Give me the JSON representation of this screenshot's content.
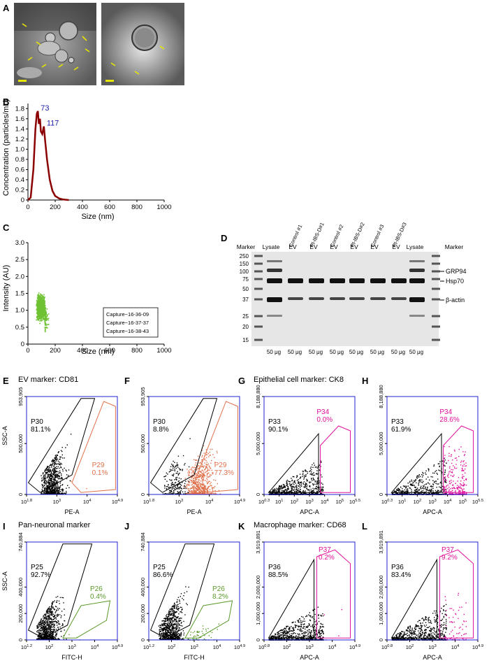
{
  "panel_labels": [
    "A",
    "B",
    "C",
    "D",
    "E",
    "F",
    "G",
    "H",
    "I",
    "J",
    "K",
    "L"
  ],
  "colors": {
    "nta_line": "#8b0000",
    "nta_peak": "#1a1aa8",
    "scatter_green": "#6fc233",
    "flow_black": "#000000",
    "flow_orange": "#e0704a",
    "flow_magenta": "#e0109c",
    "flow_green": "#5a9a2a",
    "axis_blue": "#2222cc"
  },
  "panel_b": {
    "chart_data": {
      "type": "line",
      "ylabel": "Concentration (particles/mL)",
      "xlabel": "Size (nm)",
      "xlim": [
        0,
        1000
      ],
      "ylim": [
        0,
        1.9
      ],
      "xticks": [
        "0",
        "200",
        "400",
        "600",
        "800",
        "1000"
      ],
      "yticks": [
        "0",
        "0.2",
        "0.4",
        "0.6",
        "0.8",
        "1.0",
        "1.2",
        "1.4",
        "1.6",
        "1.8"
      ],
      "peaks": [
        {
          "x": 73,
          "y": 1.75,
          "label": "73"
        },
        {
          "x": 117,
          "y": 1.45,
          "label": "117"
        }
      ],
      "x": [
        0,
        20,
        40,
        55,
        65,
        73,
        80,
        88,
        95,
        105,
        117,
        125,
        140,
        160,
        180,
        200,
        230,
        260,
        300
      ],
      "y": [
        0,
        0.05,
        0.6,
        1.4,
        1.7,
        1.75,
        1.5,
        1.6,
        1.35,
        1.3,
        1.45,
        1.2,
        0.8,
        0.4,
        0.18,
        0.08,
        0.03,
        0.01,
        0
      ]
    }
  },
  "panel_c": {
    "chart_data": {
      "type": "scatter",
      "ylabel": "Intensity (AU)",
      "xlabel": "Size (nm)",
      "xlim": [
        0,
        1000
      ],
      "ylim": [
        0,
        3.0
      ],
      "xticks": [
        "0",
        "200",
        "400",
        "600",
        "800",
        "1000"
      ],
      "yticks": [
        "0",
        "0.5",
        "1.0",
        "1.5",
        "2.0",
        "2.5",
        "3.0"
      ],
      "legend": [
        "Capture~16-36-09",
        "Capture~16-37-37",
        "Capture~16-38-43"
      ],
      "legend_position": "bottom-right"
    }
  },
  "panel_d": {
    "lane_labels": [
      "Marker",
      "Lysate",
      "EV",
      "EV",
      "EV",
      "EV",
      "EV",
      "EV",
      "Lysate",
      "Marker"
    ],
    "group_labels": [
      "Control #1",
      "PI-IBS-D#1",
      "Control #2",
      "PI-IBS-D#2",
      "Control #3",
      "PI-IBS-D#3"
    ],
    "mw_markers": [
      "250",
      "150",
      "100",
      "75",
      "50",
      "37",
      "25",
      "20",
      "15"
    ],
    "bands": [
      "GRP94",
      "Hsp70",
      "β-actin"
    ],
    "loading": [
      "50 μg",
      "50 μg",
      "50 μg",
      "50 μg",
      "50 μg",
      "50 μg",
      "50 μg",
      "50 μg"
    ]
  },
  "titles": {
    "E": "EV marker: CD81",
    "G": "Epithelial cell marker: CK8",
    "I": "Pan-neuronal marker",
    "K": "Macrophage marker: CD68"
  },
  "flow": [
    {
      "id": "E",
      "ylabel": "SSC-A",
      "xlabel": "PE-A",
      "yticks": [
        "0",
        "500,000",
        "953,905"
      ],
      "xticks": [
        "10^1.8",
        "10^3",
        "10^4",
        "10^4.9"
      ],
      "gate1": {
        "name": "P30",
        "pct": "81.1%"
      },
      "gate2": {
        "name": "P29",
        "pct": "0.1%"
      },
      "color2": "orange"
    },
    {
      "id": "F",
      "ylabel": "",
      "xlabel": "PE-A",
      "yticks": [
        "0",
        "500,000",
        "953,905"
      ],
      "xticks": [
        "10^1.8",
        "10^3",
        "10^4",
        "10^4.9"
      ],
      "gate1": {
        "name": "P30",
        "pct": "8.8%"
      },
      "gate2": {
        "name": "P29",
        "pct": "77.3%"
      },
      "color2": "orange"
    },
    {
      "id": "G",
      "ylabel": "",
      "xlabel": "APC-A",
      "yticks": [
        "0",
        "5,000,000",
        "8,188,880"
      ],
      "xticks": [
        "10^0.3",
        "10^1",
        "10^2",
        "10^3",
        "10^4",
        "10^5",
        "10^5.5"
      ],
      "gate1": {
        "name": "P33",
        "pct": "90.1%"
      },
      "gate2": {
        "name": "P34",
        "pct": "0.0%"
      },
      "color2": "magenta"
    },
    {
      "id": "H",
      "ylabel": "",
      "xlabel": "APC-A",
      "yticks": [
        "0",
        "5,000,000",
        "8,188,880"
      ],
      "xticks": [
        "10^0.3",
        "10^1",
        "10^2",
        "10^3",
        "10^4",
        "10^5",
        "10^5.5"
      ],
      "gate1": {
        "name": "P33",
        "pct": "61.9%"
      },
      "gate2": {
        "name": "P34",
        "pct": "28.6%"
      },
      "color2": "magenta"
    },
    {
      "id": "I",
      "ylabel": "SSC-A",
      "xlabel": "FITC-H",
      "yticks": [
        "0",
        "200,000",
        "400,000",
        "740,884"
      ],
      "xticks": [
        "10^1.2",
        "10^2",
        "10^3",
        "10^4",
        "10^4.9"
      ],
      "gate1": {
        "name": "P25",
        "pct": "92.7%"
      },
      "gate2": {
        "name": "P26",
        "pct": "0.4%"
      },
      "color2": "green"
    },
    {
      "id": "J",
      "ylabel": "",
      "xlabel": "FITC-H",
      "yticks": [
        "0",
        "200,000",
        "400,000",
        "740,884"
      ],
      "xticks": [
        "10^1.2",
        "10^2",
        "10^3",
        "10^4",
        "10^4.9"
      ],
      "gate1": {
        "name": "P25",
        "pct": "86.6%"
      },
      "gate2": {
        "name": "P26",
        "pct": "8.2%"
      },
      "color2": "green"
    },
    {
      "id": "K",
      "ylabel": "",
      "xlabel": "APC-A",
      "yticks": [
        "0",
        "1,000,000",
        "2,000,000",
        "3,919,891"
      ],
      "xticks": [
        "10^0.8",
        "10^2",
        "10^3",
        "10^4",
        "10^4.9"
      ],
      "gate1": {
        "name": "P36",
        "pct": "88.5%"
      },
      "gate2": {
        "name": "P37",
        "pct": "0.2%"
      },
      "color2": "magenta"
    },
    {
      "id": "L",
      "ylabel": "",
      "xlabel": "APC-A",
      "yticks": [
        "0",
        "1,000,000",
        "2,000,000",
        "3,919,891"
      ],
      "xticks": [
        "10^0.8",
        "10^2",
        "10^3",
        "10^4",
        "10^4.9"
      ],
      "gate1": {
        "name": "P36",
        "pct": "83.4%"
      },
      "gate2": {
        "name": "P37",
        "pct": "9.2%"
      },
      "color2": "magenta"
    }
  ]
}
